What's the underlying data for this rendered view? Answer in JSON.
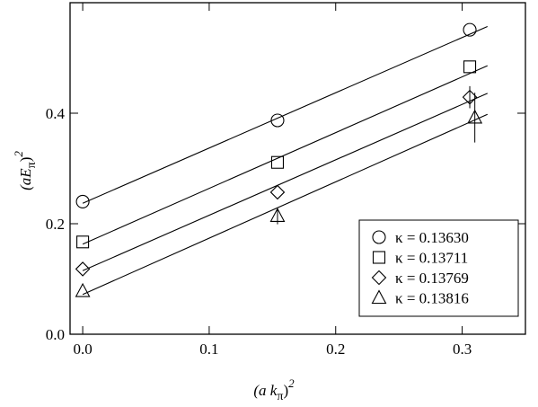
{
  "chart_data": {
    "type": "scatter",
    "x_label": {
      "open": "(a k",
      "sub": "π",
      "close": ")",
      "sup": "2"
    },
    "y_label": {
      "open": "(aE",
      "sub": "π",
      "close": ")",
      "sup": "2"
    },
    "xlim": [
      -0.01,
      0.35
    ],
    "ylim": [
      0,
      0.6
    ],
    "xticks": [
      {
        "value": 0,
        "label": "0.0"
      },
      0.1,
      0.2,
      0.3
    ],
    "yticks": [
      {
        "value": 0,
        "label": "0.0"
      },
      0.2,
      0.4
    ],
    "legend": "lower right",
    "fit_x": [
      0,
      0.32
    ],
    "series": [
      {
        "name": "κ = 0.13630",
        "marker": "circle",
        "color": "#000000",
        "x": [
          0,
          0.154,
          0.306
        ],
        "values": [
          0.24,
          0.387,
          0.551
        ],
        "errors": [
          0,
          0,
          0
        ],
        "fit_values": [
          0.237,
          0.557
        ]
      },
      {
        "name": "κ = 0.13711",
        "marker": "square",
        "color": "#000000",
        "x": [
          0,
          0.154,
          0.306
        ],
        "values": [
          0.167,
          0.311,
          0.484
        ],
        "errors": [
          0,
          0,
          0
        ],
        "fit_values": [
          0.163,
          0.486
        ]
      },
      {
        "name": "κ = 0.13769",
        "marker": "diamond",
        "color": "#000000",
        "x": [
          0,
          0.154,
          0.306
        ],
        "values": [
          0.118,
          0.257,
          0.429
        ],
        "errors": [
          0,
          0,
          0.02
        ],
        "fit_values": [
          0.115,
          0.436
        ]
      },
      {
        "name": "κ = 0.13816",
        "marker": "triangle",
        "color": "#000000",
        "x": [
          0,
          0.154,
          0.31
        ],
        "values": [
          0.078,
          0.214,
          0.392
        ],
        "errors": [
          0,
          0.015,
          0.045
        ],
        "fit_values": [
          0.072,
          0.398
        ]
      }
    ]
  }
}
